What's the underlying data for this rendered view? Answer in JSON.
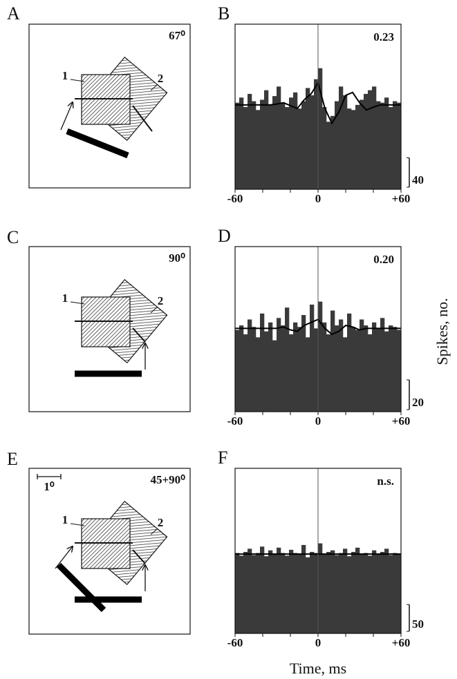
{
  "x_axis_label": "Time, ms",
  "y_axis_label": "Spikes, no.",
  "diagrams": [
    {
      "panel_label": "A",
      "angle": "67⁰",
      "label_1": "1",
      "label_2": "2"
    },
    {
      "panel_label": "C",
      "angle": "90⁰",
      "label_1": "1",
      "label_2": "2"
    },
    {
      "panel_label": "E",
      "angle": "45+90⁰",
      "label_1": "1",
      "label_2": "2",
      "scale_label": "1⁰"
    }
  ],
  "chart_data": [
    {
      "type": "histogram",
      "panel_label": "B",
      "annotation": "0.23",
      "color": "#3a3a3a",
      "bins": [
        -60,
        -57,
        -54,
        -51,
        -48,
        -45,
        -42,
        -39,
        -36,
        -33,
        -30,
        -27,
        -24,
        -21,
        -18,
        -15,
        -12,
        -9,
        -6,
        -3,
        0,
        3,
        6,
        9,
        12,
        15,
        18,
        21,
        24,
        27,
        30,
        33,
        36,
        39,
        42,
        45,
        48,
        51,
        54,
        57,
        60
      ],
      "values": [
        118,
        125,
        112,
        130,
        120,
        108,
        122,
        135,
        115,
        127,
        140,
        118,
        112,
        125,
        132,
        110,
        120,
        138,
        128,
        150,
        165,
        112,
        92,
        100,
        120,
        140,
        128,
        110,
        108,
        115,
        122,
        130,
        135,
        140,
        120,
        118,
        125,
        112,
        120,
        118
      ],
      "fit": {
        "x": [
          -60,
          -55,
          -50,
          -45,
          -40,
          -35,
          -30,
          -25,
          -20,
          -15,
          -10,
          -5,
          0,
          5,
          10,
          15,
          20,
          25,
          30,
          35,
          40,
          45,
          50,
          55,
          60
        ],
        "values": [
          115,
          115,
          115,
          115,
          115,
          115,
          116,
          118,
          114,
          110,
          122,
          130,
          145,
          110,
          90,
          105,
          128,
          132,
          118,
          108,
          112,
          115,
          115,
          115,
          115
        ]
      },
      "xlim": [
        -60,
        60
      ],
      "ylim": [
        0,
        225
      ],
      "xticks": [
        -60,
        0,
        {
          "value": 60,
          "label": "+60"
        }
      ],
      "minor_xticks": [
        -40,
        -20,
        20,
        40
      ],
      "vline": 0,
      "scale_bar": 40
    },
    {
      "type": "histogram",
      "panel_label": "D",
      "annotation": "0.20",
      "color": "#3a3a3a",
      "bins": [
        -60,
        -57,
        -54,
        -51,
        -48,
        -45,
        -42,
        -39,
        -36,
        -33,
        -30,
        -27,
        -24,
        -21,
        -18,
        -15,
        -12,
        -9,
        -6,
        -3,
        0,
        3,
        6,
        9,
        12,
        15,
        18,
        21,
        24,
        27,
        30,
        33,
        36,
        39,
        42,
        45,
        48,
        51,
        54,
        57,
        60
      ],
      "values": [
        55,
        58,
        52,
        62,
        57,
        50,
        66,
        54,
        60,
        48,
        63,
        58,
        70,
        52,
        60,
        57,
        65,
        50,
        72,
        56,
        74,
        60,
        52,
        68,
        58,
        62,
        50,
        66,
        57,
        55,
        62,
        58,
        52,
        60,
        56,
        63,
        54,
        58,
        57,
        55
      ],
      "fit": {
        "x": [
          -60,
          -55,
          -50,
          -45,
          -40,
          -35,
          -30,
          -25,
          -20,
          -15,
          -10,
          -5,
          0,
          5,
          10,
          15,
          20,
          25,
          30,
          35,
          40,
          45,
          50,
          55,
          60
        ],
        "values": [
          56,
          56,
          56,
          56,
          56,
          56,
          56,
          57,
          55,
          54,
          58,
          60,
          62,
          56,
          52,
          54,
          58,
          57,
          55,
          56,
          56,
          56,
          56,
          56,
          56
        ]
      },
      "xlim": [
        -60,
        60
      ],
      "ylim": [
        0,
        111
      ],
      "xticks": [
        -60,
        0,
        {
          "value": 60,
          "label": "+60"
        }
      ],
      "minor_xticks": [
        -40,
        -20,
        20,
        40
      ],
      "vline": 0,
      "scale_bar": 20
    },
    {
      "type": "histogram",
      "panel_label": "F",
      "annotation": "n.s.",
      "color": "#3a3a3a",
      "bins": [
        -60,
        -57,
        -54,
        -51,
        -48,
        -45,
        -42,
        -39,
        -36,
        -33,
        -30,
        -27,
        -24,
        -21,
        -18,
        -15,
        -12,
        -9,
        -6,
        -3,
        0,
        3,
        6,
        9,
        12,
        15,
        18,
        21,
        24,
        27,
        30,
        33,
        36,
        39,
        42,
        45,
        48,
        51,
        54,
        57,
        60
      ],
      "values": [
        150,
        145,
        152,
        158,
        146,
        150,
        162,
        144,
        155,
        148,
        160,
        150,
        145,
        156,
        150,
        148,
        165,
        142,
        152,
        150,
        168,
        148,
        152,
        155,
        146,
        150,
        158,
        144,
        152,
        160,
        148,
        150,
        145,
        155,
        148,
        152,
        158,
        146,
        150,
        148
      ],
      "fit": {
        "x": [
          -60,
          -55,
          -50,
          -45,
          -40,
          -35,
          -30,
          -25,
          -20,
          -15,
          -10,
          -5,
          0,
          5,
          10,
          15,
          20,
          25,
          30,
          35,
          40,
          45,
          50,
          55,
          60
        ],
        "values": [
          148,
          148,
          148,
          148,
          148,
          148,
          148,
          148,
          148,
          148,
          148,
          148,
          148,
          148,
          148,
          148,
          148,
          148,
          148,
          148,
          148,
          148,
          148,
          148,
          148
        ]
      },
      "xlim": [
        -60,
        60
      ],
      "ylim": [
        0,
        308
      ],
      "xticks": [
        -60,
        0,
        {
          "value": 60,
          "label": "+60"
        }
      ],
      "minor_xticks": [
        -40,
        -20,
        20,
        40
      ],
      "vline": 0,
      "scale_bar": 50
    }
  ]
}
